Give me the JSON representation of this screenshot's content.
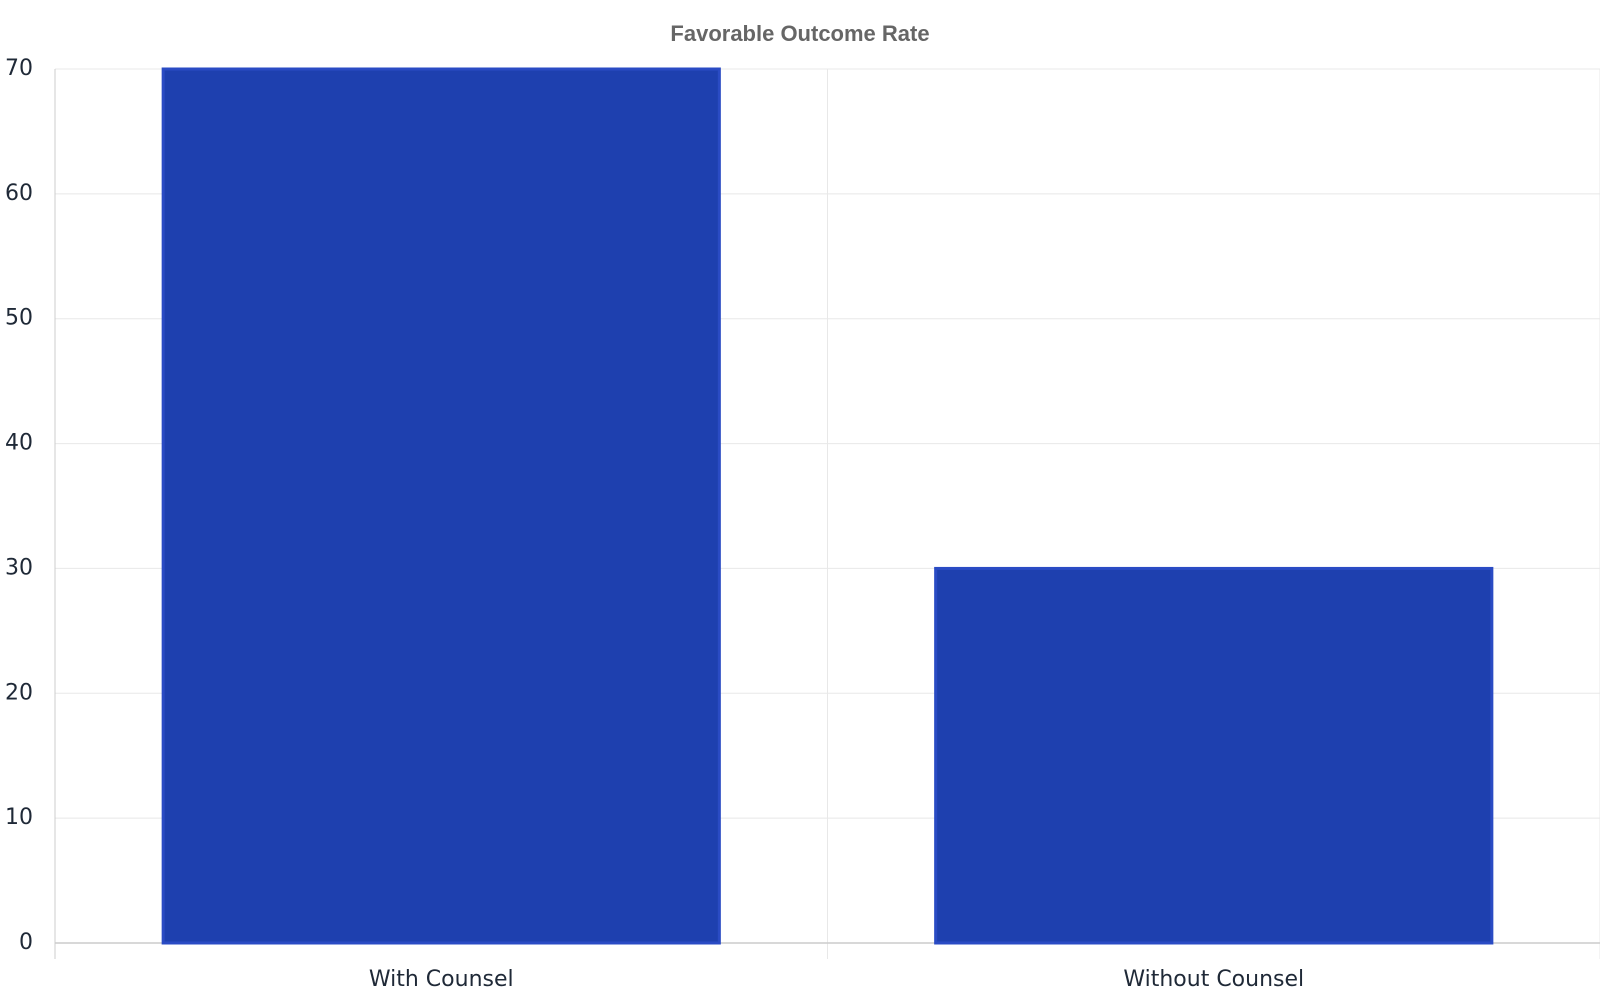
{
  "chart_data": {
    "type": "bar",
    "title": "Favorable Outcome Rate",
    "categories": [
      "With Counsel",
      "Without Counsel"
    ],
    "values": [
      70,
      30
    ],
    "color": "#1e40af",
    "ylim": [
      0,
      70
    ],
    "yticks": [
      0,
      10,
      20,
      30,
      40,
      50,
      60,
      70
    ],
    "grid": true
  }
}
